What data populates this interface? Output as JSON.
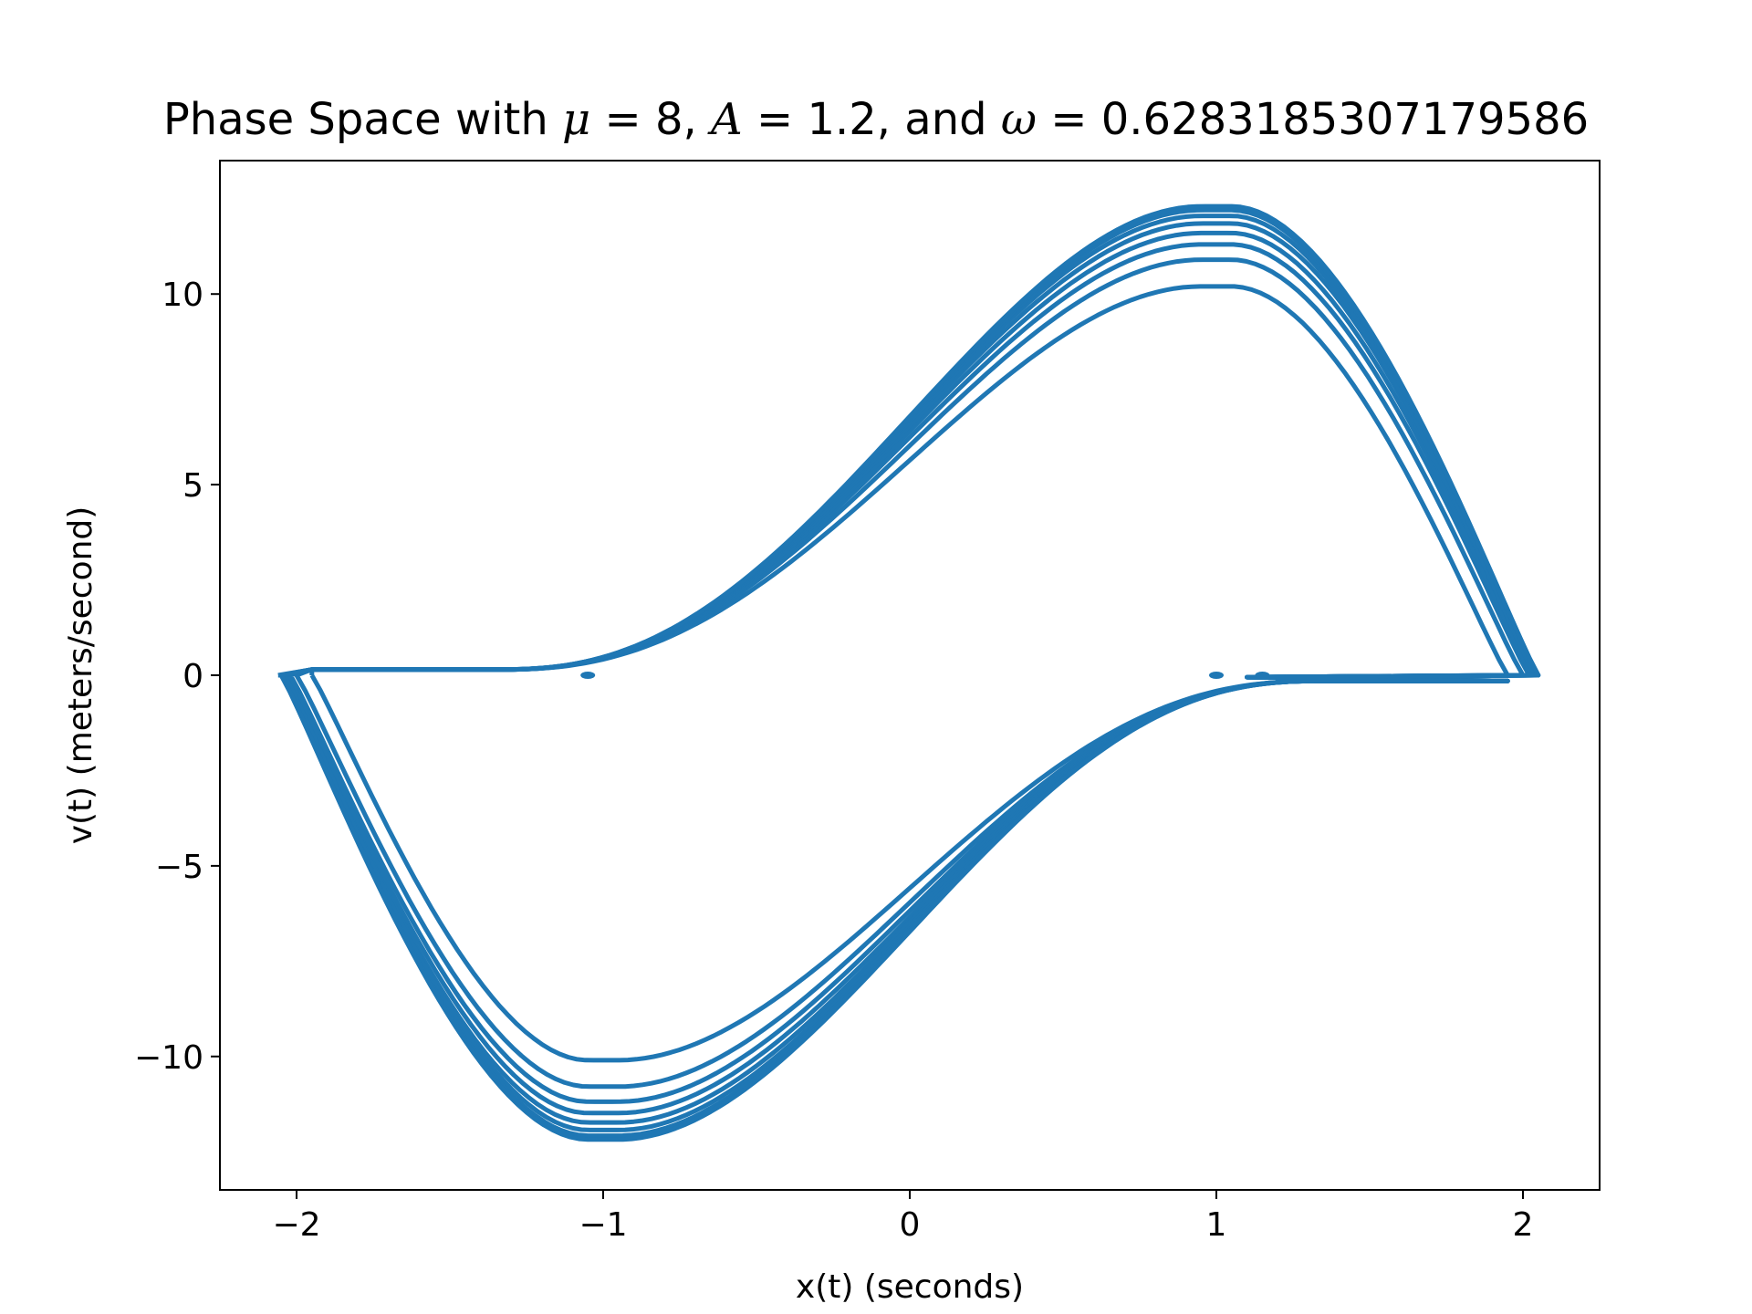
{
  "chart_data": {
    "type": "line",
    "title": {
      "prefix": "Phase Space with ",
      "mu_sym": "μ",
      "mu_val": " = 8, ",
      "A_sym": "A",
      "A_val": " = 1.2, and ",
      "omega_sym": "ω",
      "omega_val": " = 0.6283185307179586"
    },
    "xlabel": "x(t) (seconds)",
    "ylabel": "v(t) (meters/second)",
    "xlim": [
      -2.25,
      2.25
    ],
    "ylim": [
      -13.5,
      13.5
    ],
    "xticks": [
      {
        "value": -2,
        "label": "−2"
      },
      {
        "value": -1,
        "label": "−1"
      },
      {
        "value": 0,
        "label": "0"
      },
      {
        "value": 1,
        "label": "1"
      },
      {
        "value": 2,
        "label": "2"
      }
    ],
    "yticks": [
      {
        "value": -10,
        "label": "−10"
      },
      {
        "value": -5,
        "label": "−5"
      },
      {
        "value": 0,
        "label": "0"
      },
      {
        "value": 5,
        "label": "5"
      },
      {
        "value": 10,
        "label": "10"
      }
    ],
    "grid": false,
    "line_color": "#1f77b4",
    "series": [
      {
        "loops": [
          {
            "peak": 10.2,
            "xmax": 1.95,
            "xmin": -1.95
          },
          {
            "peak": 10.9,
            "xmax": 2.0,
            "xmin": -2.0
          },
          {
            "peak": 11.3,
            "xmax": 2.02,
            "xmin": -2.02
          },
          {
            "peak": 11.6,
            "xmax": 2.03,
            "xmin": -2.03
          },
          {
            "peak": 11.85,
            "xmax": 2.04,
            "xmin": -2.04
          },
          {
            "peak": 12.05,
            "xmax": 2.04,
            "xmin": -2.05
          },
          {
            "peak": 12.2,
            "xmax": 2.05,
            "xmin": -2.05
          },
          {
            "peak": 12.3,
            "xmax": 2.05,
            "xmin": -2.06
          }
        ]
      }
    ]
  }
}
